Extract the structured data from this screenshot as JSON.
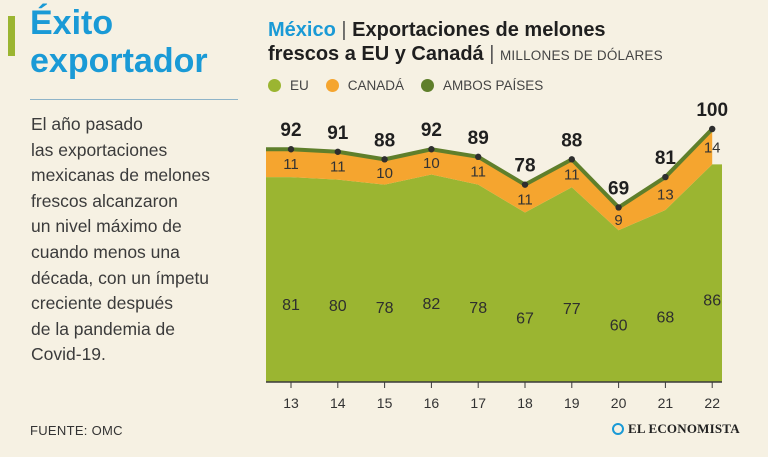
{
  "headline": {
    "line1": "Éxito",
    "line2": "exportador"
  },
  "body_text": [
    "El año pasado",
    "las exportaciones",
    "mexicanas de melones",
    "frescos alcanzaron",
    "un nivel máximo de",
    "cuando menos una",
    "década, con un ímpetu",
    "creciente después",
    "de la pandemia de",
    "Covid-19."
  ],
  "source": "FUENTE: OMC",
  "brand": "EL ECONOMISTA",
  "colors": {
    "accent_blue": "#1a9ad6",
    "eu": "#9bb531",
    "canada": "#f5a52f",
    "ambos": "#5f7f2b",
    "background": "#f6f1e3"
  },
  "chart_data": {
    "type": "area",
    "title_place": "México",
    "title_sep": "|",
    "title": "Exportaciones de melones frescos a EU y Canadá",
    "title_line1": "Exportaciones de melones",
    "title_line2": "frescos a EU y Canadá",
    "unit": "MILLONES DE DÓLARES",
    "legend": [
      {
        "label": "EU",
        "color": "#9bb531"
      },
      {
        "label": "CANADÁ",
        "color": "#f5a52f"
      },
      {
        "label": "AMBOS PAÍSES",
        "color": "#5f7f2b"
      }
    ],
    "categories": [
      "13",
      "14",
      "15",
      "16",
      "17",
      "18",
      "19",
      "20",
      "21",
      "22"
    ],
    "series": [
      {
        "name": "EU",
        "values": [
          81,
          80,
          78,
          82,
          78,
          67,
          77,
          60,
          68,
          86
        ]
      },
      {
        "name": "CANADÁ",
        "values": [
          11,
          11,
          10,
          10,
          11,
          11,
          11,
          9,
          13,
          14
        ]
      },
      {
        "name": "AMBOS PAÍSES",
        "values": [
          92,
          91,
          88,
          92,
          89,
          78,
          88,
          69,
          81,
          100
        ]
      }
    ],
    "ylim": [
      0,
      100
    ],
    "xlabel": "",
    "ylabel": "",
    "grid": false
  }
}
